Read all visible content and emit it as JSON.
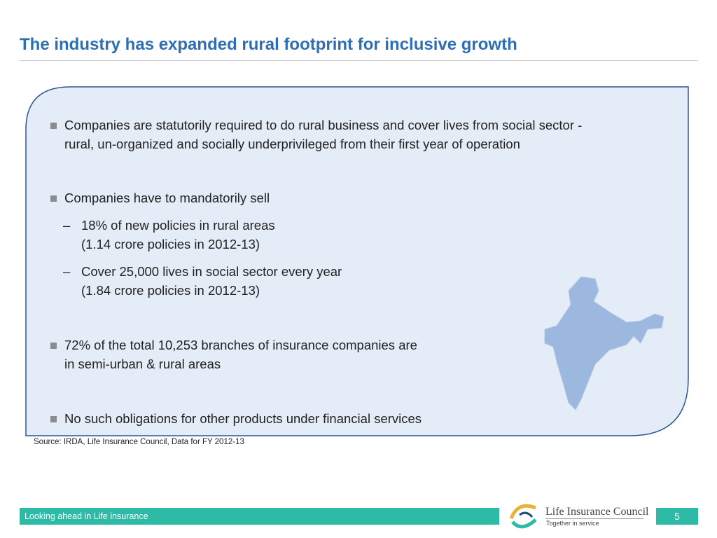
{
  "header": {
    "title": "The industry has expanded rural footprint for inclusive growth"
  },
  "bullets": [
    {
      "lines": [
        "Companies are statutorily required to do rural business and cover lives from social sector -",
        "rural, un-organized and socially underprivileged from their first year of operation"
      ]
    },
    {
      "lines": [
        "Companies have to mandatorily sell"
      ],
      "subitems": [
        {
          "lines": [
            "18% of new policies in rural areas",
            "(1.14 crore policies in 2012-13)"
          ]
        },
        {
          "lines": [
            "Cover 25,000 lives in social sector every year",
            "(1.84 crore policies in 2012-13)"
          ]
        }
      ]
    },
    {
      "lines": [
        "72% of the total 10,253 branches of insurance companies are",
        "in semi-urban & rural areas"
      ]
    },
    {
      "lines": [
        "No such obligations for other products under financial services"
      ]
    }
  ],
  "source": "Source: IRDA, Life Insurance Council, Data for FY 2012-13",
  "footer": {
    "tagline": "Looking ahead in Life insurance",
    "logo_name": "Life Insurance Council",
    "logo_slogan": "Together in service",
    "page_number": "5"
  }
}
